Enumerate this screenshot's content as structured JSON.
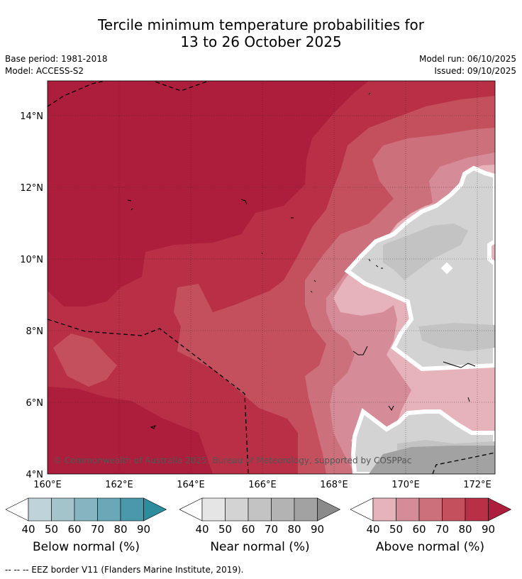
{
  "header": {
    "title_line1": "Tercile minimum temperature probabilities for",
    "title_line2": "13 to 26 October 2025",
    "base_period": "Base period: 1981-2018",
    "model": "Model: ACCESS-S2",
    "model_run": "Model run: 06/10/2025",
    "issued": "Issued: 09/10/2025"
  },
  "map": {
    "lat_labels": [
      "14°N",
      "12°N",
      "10°N",
      "8°N",
      "6°N",
      "4°N"
    ],
    "lon_labels": [
      "160°E",
      "162°E",
      "164°E",
      "166°E",
      "168°E",
      "170°E",
      "172°E"
    ],
    "lat_values": [
      14,
      12,
      10,
      8,
      6,
      4
    ],
    "lon_values": [
      160,
      162,
      164,
      166,
      168,
      170,
      172
    ],
    "copyright": "© Commonwealth of Australia 2025, Bureau of Meteorology, supported by COSPPac"
  },
  "colorbars": [
    {
      "label": "Below normal (%)",
      "ticks": [
        "40",
        "50",
        "60",
        "70",
        "80",
        "90"
      ],
      "colors": [
        "#ffffff",
        "#bfd3da",
        "#a3c4cb",
        "#86b4c0",
        "#6aa8b7",
        "#4a99ab",
        "#2e8c9f"
      ]
    },
    {
      "label": "Near normal (%)",
      "ticks": [
        "40",
        "50",
        "60",
        "70",
        "80",
        "90"
      ],
      "colors": [
        "#ffffff",
        "#e5e5e5",
        "#d3d3d3",
        "#c3c3c3",
        "#b3b3b3",
        "#a2a2a2",
        "#8a8a8a"
      ]
    },
    {
      "label": "Above normal (%)",
      "ticks": [
        "40",
        "50",
        "60",
        "70",
        "80",
        "90"
      ],
      "colors": [
        "#ffffff",
        "#e6b3ba",
        "#d58c98",
        "#cc707c",
        "#c4505d",
        "#b82f46",
        "#ad1d3c"
      ]
    }
  ],
  "footer": "--  --  -- EEZ border V11 (Flanders Marine Institute, 2019)."
}
